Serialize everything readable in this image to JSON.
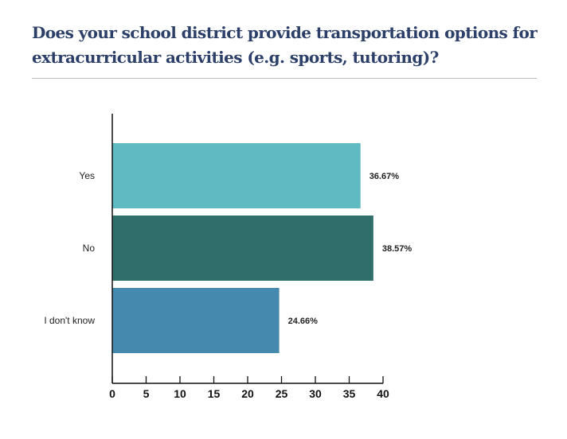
{
  "title": "Does your school district provide transportation options for extracurricular activities (e.g. sports, tutoring)?",
  "chart_data": {
    "type": "bar",
    "orientation": "horizontal",
    "title": "Does your school district provide transportation options for extracurricular activities (e.g. sports, tutoring)?",
    "categories": [
      "Yes",
      "No",
      "I don't know"
    ],
    "values": [
      36.67,
      38.57,
      24.66
    ],
    "data_labels": [
      "36.67%",
      "38.57%",
      "24.66%"
    ],
    "colors": [
      "#5fbbc1",
      "#2f6f6b",
      "#4589af"
    ],
    "xlim": [
      0,
      40
    ],
    "xticks": [
      0,
      5,
      10,
      15,
      20,
      25,
      30,
      35,
      40
    ],
    "grid": false,
    "xlabel": "",
    "ylabel": ""
  }
}
